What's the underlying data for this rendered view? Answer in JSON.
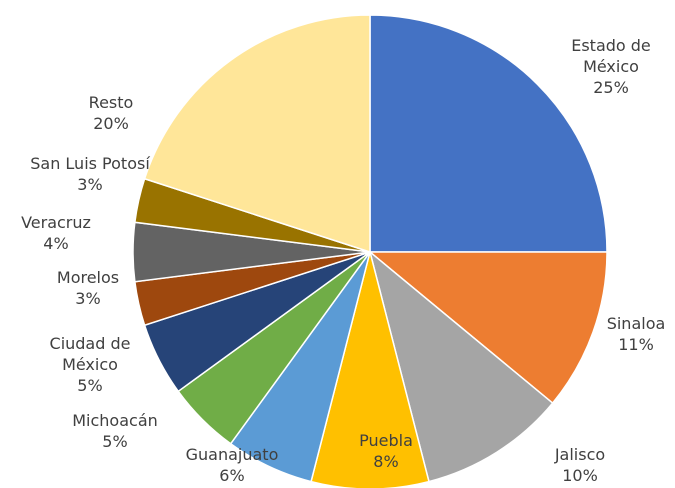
{
  "chart_data": {
    "type": "pie",
    "categories": [
      "Estado de México",
      "Sinaloa",
      "Jalisco",
      "Puebla",
      "Guanajuato",
      "Michoacán",
      "Ciudad de México",
      "Morelos",
      "Veracruz",
      "San Luis Potosí",
      "Resto"
    ],
    "values": [
      25,
      11,
      10,
      8,
      6,
      5,
      5,
      3,
      4,
      3,
      20
    ],
    "value_labels": [
      "25%",
      "11%",
      "10%",
      "8%",
      "6%",
      "5%",
      "5%",
      "3%",
      "4%",
      "3%",
      "20%"
    ],
    "colors": [
      "#4472c4",
      "#ed7d31",
      "#a5a5a5",
      "#ffc000",
      "#5b9bd5",
      "#70ad47",
      "#264478",
      "#9e480e",
      "#636363",
      "#997300",
      "#ffe699"
    ]
  }
}
